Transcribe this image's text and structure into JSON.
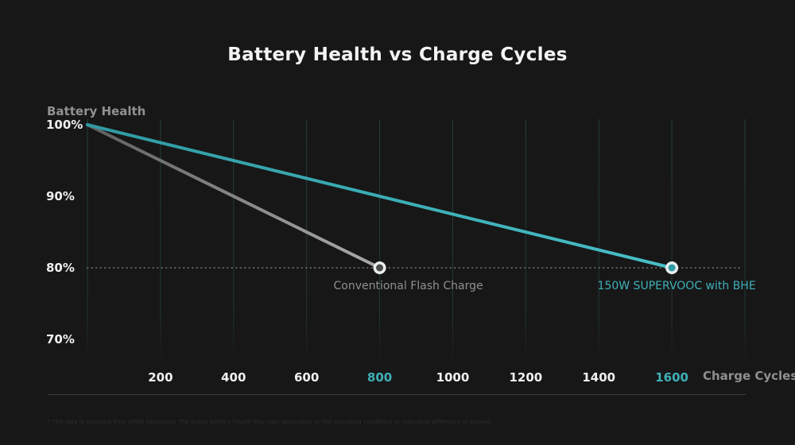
{
  "title": "Battery Health vs Charge Cycles",
  "footnote": "* The data is obtained from OPPO laboratory. The actual battery health may vary depending on the operating conditions or individual difference of phones.",
  "colors": {
    "background": "#171717",
    "title_text": "#f4f4f4",
    "axis_text": "#f0f0f0",
    "muted_text": "#8f8f8f",
    "teal_accent": "#3fb0b9",
    "grid_line": "#263f40",
    "dotted_reference": "#606060",
    "marker_ring": "#e9edee",
    "baseline": "#3e3e3e",
    "footnote_text": "#2f2f2f"
  },
  "chart_data": {
    "type": "line",
    "title": "Battery Health vs Charge Cycles",
    "xlabel": "Charge Cycles",
    "ylabel": "Battery Health",
    "xlim": [
      0,
      1800
    ],
    "ylim": [
      70,
      100
    ],
    "grid": "vertical",
    "grid_step": 200,
    "reference_line_y": 80,
    "x_ticks": [
      200,
      400,
      600,
      800,
      1000,
      1200,
      1400,
      1600
    ],
    "x_ticks_highlighted": [
      800,
      1600
    ],
    "y_ticks": [
      {
        "label": "100%",
        "value": 100
      },
      {
        "label": "90%",
        "value": 90
      },
      {
        "label": "80%",
        "value": 80
      },
      {
        "label": "70%",
        "value": 70
      }
    ],
    "legend_position": "below-endpoints",
    "series": [
      {
        "name": "Conventional Flash Charge",
        "points": [
          [
            0,
            100
          ],
          [
            800,
            80
          ]
        ],
        "color_start": "#606060",
        "color_end": "#ababab",
        "marker_color": "#4a4a4a",
        "label_color": "#8f8f8f"
      },
      {
        "name": "150W SUPERVOOC with BHE",
        "points": [
          [
            0,
            100
          ],
          [
            1600,
            80
          ]
        ],
        "color_start": "#2f9aa3",
        "color_end": "#48bfc7",
        "marker_color": "#2f9ba5",
        "label_color": "#3fb0b9"
      }
    ]
  }
}
